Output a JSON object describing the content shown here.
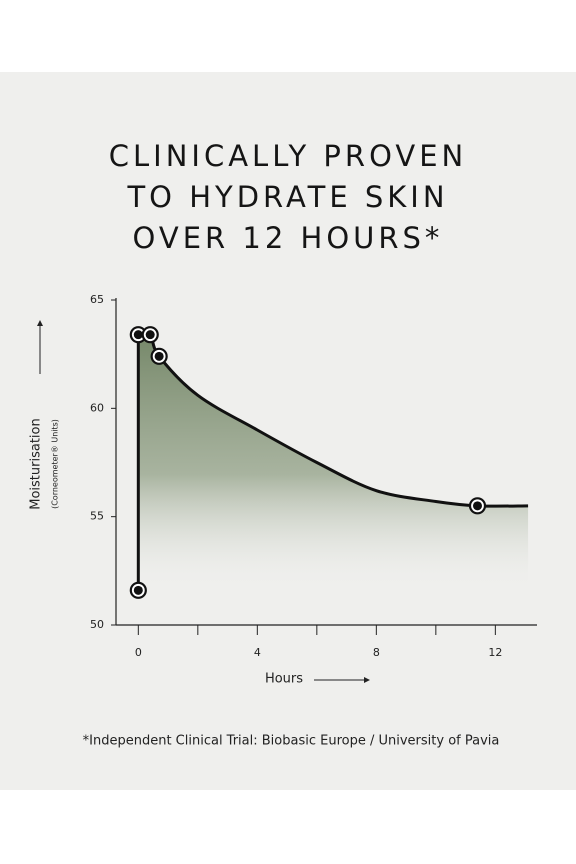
{
  "chart_data": {
    "type": "line",
    "title": [
      "CLINICALLY PROVEN",
      "TO HYDRATE SKIN",
      "OVER 12 HOURS*"
    ],
    "x_label": "Hours",
    "y_label": "Moisturisation",
    "y_sublabel": "(Corneometer® Units)",
    "note": "*Independent Clinical Trial: Biobasic Europe / University of Pavia",
    "xlim": [
      -0.75,
      13.4
    ],
    "ylim": [
      50,
      65
    ],
    "xticks": [
      0,
      4,
      8,
      12
    ],
    "x_minor_ticks": [
      2,
      6,
      10
    ],
    "yticks": [
      50,
      55,
      60,
      65
    ],
    "series": [
      {
        "color": "#111111",
        "fill_color": "#6f8262",
        "x": [
          0,
          0,
          0.4,
          0.7,
          2,
          4,
          6,
          8,
          10,
          11.4,
          13.1
        ],
        "values": [
          51.6,
          63.4,
          63.4,
          62.4,
          60.6,
          59.0,
          57.5,
          56.2,
          55.7,
          55.5,
          55.5
        ]
      }
    ],
    "points": {
      "x": [
        0,
        0,
        0.4,
        0.7,
        11.4
      ],
      "values": [
        51.6,
        63.4,
        63.4,
        62.4,
        55.5
      ]
    }
  }
}
